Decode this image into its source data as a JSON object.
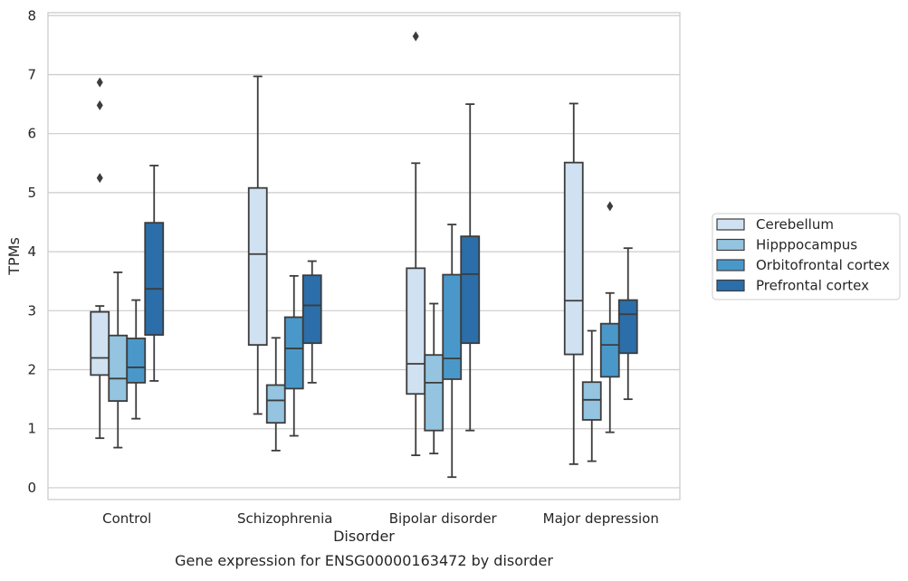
{
  "chart_data": {
    "type": "box",
    "xlabel": "Disorder",
    "ylabel": "TPMs",
    "ylim": [
      -0.2,
      8.05
    ],
    "yticks": [
      0,
      1,
      2,
      3,
      4,
      5,
      6,
      7,
      8
    ],
    "grid": "horizontal",
    "legend_position": "right",
    "categories": [
      "Control",
      "Schizophrenia",
      "Bipolar disorder",
      "Major depression"
    ],
    "series": [
      {
        "name": "Cerebellum",
        "color": "#d0e1f2",
        "boxes": [
          {
            "whislo": 0.84,
            "q1": 1.91,
            "med": 2.2,
            "q3": 2.98,
            "whishi": 3.08,
            "fliers": [
              5.25,
              6.48,
              6.87
            ]
          },
          {
            "whislo": 1.25,
            "q1": 2.42,
            "med": 3.96,
            "q3": 5.08,
            "whishi": 6.97,
            "fliers": []
          },
          {
            "whislo": 0.55,
            "q1": 1.59,
            "med": 2.1,
            "q3": 3.72,
            "whishi": 5.5,
            "fliers": [
              7.65
            ]
          },
          {
            "whislo": 0.4,
            "q1": 2.26,
            "med": 3.17,
            "q3": 5.51,
            "whishi": 6.51,
            "fliers": []
          }
        ]
      },
      {
        "name": "Hipppocampus",
        "color": "#94c4df",
        "boxes": [
          {
            "whislo": 0.68,
            "q1": 1.47,
            "med": 1.85,
            "q3": 2.58,
            "whishi": 3.65,
            "fliers": []
          },
          {
            "whislo": 0.63,
            "q1": 1.1,
            "med": 1.48,
            "q3": 1.74,
            "whishi": 2.54,
            "fliers": []
          },
          {
            "whislo": 0.58,
            "q1": 0.97,
            "med": 1.78,
            "q3": 2.25,
            "whishi": 3.12,
            "fliers": []
          },
          {
            "whislo": 0.45,
            "q1": 1.15,
            "med": 1.49,
            "q3": 1.79,
            "whishi": 2.66,
            "fliers": []
          }
        ]
      },
      {
        "name": "Orbitofrontal cortex",
        "color": "#4a98c9",
        "boxes": [
          {
            "whislo": 1.17,
            "q1": 1.78,
            "med": 2.04,
            "q3": 2.53,
            "whishi": 3.18,
            "fliers": []
          },
          {
            "whislo": 0.88,
            "q1": 1.68,
            "med": 2.36,
            "q3": 2.89,
            "whishi": 3.59,
            "fliers": []
          },
          {
            "whislo": 0.18,
            "q1": 1.84,
            "med": 2.19,
            "q3": 3.61,
            "whishi": 4.46,
            "fliers": []
          },
          {
            "whislo": 0.94,
            "q1": 1.88,
            "med": 2.42,
            "q3": 2.78,
            "whishi": 3.3,
            "fliers": [
              4.77
            ]
          }
        ]
      },
      {
        "name": "Prefrontal cortex",
        "color": "#2b6ea9",
        "boxes": [
          {
            "whislo": 1.81,
            "q1": 2.59,
            "med": 3.37,
            "q3": 4.49,
            "whishi": 5.46,
            "fliers": []
          },
          {
            "whislo": 1.78,
            "q1": 2.45,
            "med": 3.09,
            "q3": 3.6,
            "whishi": 3.84,
            "fliers": []
          },
          {
            "whislo": 0.97,
            "q1": 2.45,
            "med": 3.62,
            "q3": 4.26,
            "whishi": 6.5,
            "fliers": []
          },
          {
            "whislo": 1.5,
            "q1": 2.28,
            "med": 2.94,
            "q3": 3.18,
            "whishi": 4.06,
            "fliers": []
          }
        ]
      }
    ]
  },
  "caption": "Gene expression for ENSG00000163472 by disorder"
}
